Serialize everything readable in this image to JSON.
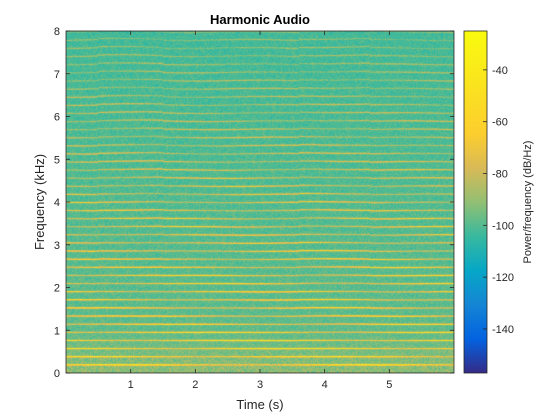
{
  "chart_data": {
    "type": "heatmap",
    "title": "Harmonic Audio",
    "xlabel": "Time (s)",
    "ylabel": "Frequency (kHz)",
    "colorbar_label": "Power/frequency (dB/Hz)",
    "xlim": [
      0,
      6
    ],
    "ylim": [
      0,
      8
    ],
    "clim": [
      -157,
      -25
    ],
    "x_ticks": [
      1,
      2,
      3,
      4,
      5
    ],
    "y_ticks": [
      0,
      1,
      2,
      3,
      4,
      5,
      6,
      7,
      8
    ],
    "colorbar_ticks": [
      -140,
      -120,
      -100,
      -80,
      -60,
      -40
    ],
    "colormap": "parula",
    "harmonics_khz": [
      0.19,
      0.38,
      0.57,
      0.76,
      0.95,
      1.14,
      1.33,
      1.52,
      1.71,
      1.9,
      2.09,
      2.28,
      2.47,
      2.66,
      2.85,
      3.04,
      3.23,
      3.42,
      3.61,
      3.8,
      3.99,
      4.18,
      4.37,
      4.56,
      4.75,
      4.94,
      5.13,
      5.32,
      5.51,
      5.7,
      5.89,
      6.08,
      6.27,
      6.46,
      6.65,
      6.84,
      7.03,
      7.22,
      7.41,
      7.6,
      7.79,
      7.98
    ],
    "background_db": -98,
    "peak_db": -45,
    "segment_boundaries_s": [
      0.5,
      1.5,
      3.6,
      4.7
    ]
  }
}
